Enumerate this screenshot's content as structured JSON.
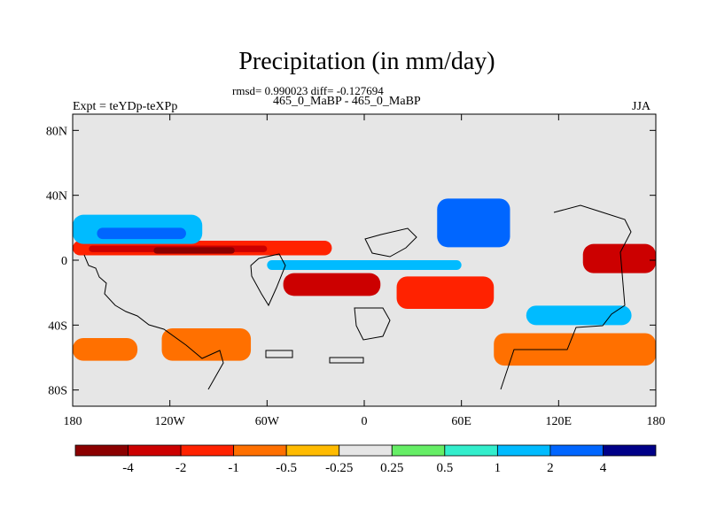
{
  "title": "Precipitation (in mm/day)",
  "stats_line": "rmsd= 0.990023 diff= -0.127694",
  "subtitle": "465_0_MaBP - 465_0_MaBP",
  "left_label": "Expt = teYDp-teXPp",
  "right_label": "JJA",
  "chart_data": {
    "type": "heatmap",
    "title": "Precipitation (in mm/day)",
    "subtitle": "465_0_MaBP - 465_0_MaBP",
    "annotation": "rmsd= 0.990023 diff= -0.127694",
    "experiment": "Expt = teYDp-teXPp",
    "season": "JJA",
    "x_range": [
      -180,
      180
    ],
    "y_range": [
      -90,
      90
    ],
    "x_ticks": [
      {
        "value": -180,
        "label": "180"
      },
      {
        "value": -120,
        "label": "120W"
      },
      {
        "value": -60,
        "label": "60W"
      },
      {
        "value": 0,
        "label": "0"
      },
      {
        "value": 60,
        "label": "60E"
      },
      {
        "value": 120,
        "label": "120E"
      },
      {
        "value": 180,
        "label": "180"
      }
    ],
    "y_ticks": [
      {
        "value": 80,
        "label": "80N"
      },
      {
        "value": 40,
        "label": "40N"
      },
      {
        "value": 0,
        "label": "0"
      },
      {
        "value": -40,
        "label": "40S"
      },
      {
        "value": -80,
        "label": "80S"
      }
    ],
    "background_color": "#e6e6e6",
    "colorbar": {
      "levels": [
        "-4",
        "-2",
        "-1",
        "-0.5",
        "-0.25",
        "0.25",
        "0.5",
        "1",
        "2",
        "4"
      ],
      "colors": [
        "#8b0000",
        "#cc0000",
        "#ff2200",
        "#ff7000",
        "#ffbb00",
        "#e6e6e6",
        "#66ee66",
        "#33eecc",
        "#00bbff",
        "#0066ff",
        "#000088"
      ]
    },
    "regions": [
      {
        "name": "arabian-sea-positive",
        "lon": [
          45,
          90
        ],
        "lat": [
          8,
          38
        ],
        "class": 9
      },
      {
        "name": "northern-tropics-band-1",
        "lon": [
          -180,
          -20
        ],
        "lat": [
          3,
          12
        ],
        "class": 2
      },
      {
        "name": "northern-tropics-band-2",
        "lon": [
          -170,
          -60
        ],
        "lat": [
          5,
          9
        ],
        "class": 1
      },
      {
        "name": "northern-tropics-band-3",
        "lon": [
          -130,
          -80
        ],
        "lat": [
          4,
          8
        ],
        "class": 0
      },
      {
        "name": "north-pacific-wet",
        "lon": [
          -180,
          -100
        ],
        "lat": [
          10,
          28
        ],
        "class": 8
      },
      {
        "name": "north-pacific-strong-wet",
        "lon": [
          -165,
          -110
        ],
        "lat": [
          13,
          20
        ],
        "class": 9
      },
      {
        "name": "south-atlantic-dry",
        "lon": [
          -50,
          10
        ],
        "lat": [
          -22,
          -8
        ],
        "class": 1
      },
      {
        "name": "indian-ocean-dry",
        "lon": [
          20,
          80
        ],
        "lat": [
          -30,
          -10
        ],
        "class": 2
      },
      {
        "name": "equatorial-wet",
        "lon": [
          -60,
          60
        ],
        "lat": [
          -6,
          0
        ],
        "class": 8
      },
      {
        "name": "west-pacific-dry",
        "lon": [
          135,
          180
        ],
        "lat": [
          -8,
          10
        ],
        "class": 1
      },
      {
        "name": "southern-ocean-dry",
        "lon": [
          -125,
          -70
        ],
        "lat": [
          -62,
          -42
        ],
        "class": 3
      },
      {
        "name": "south-pacific-dry",
        "lon": [
          -180,
          -140
        ],
        "lat": [
          -62,
          -48
        ],
        "class": 3
      },
      {
        "name": "high-south-dry",
        "lon": [
          80,
          180
        ],
        "lat": [
          -65,
          -45
        ],
        "class": 3
      },
      {
        "name": "mid-south-wet",
        "lon": [
          100,
          165
        ],
        "lat": [
          -40,
          -28
        ],
        "class": 8
      }
    ]
  }
}
